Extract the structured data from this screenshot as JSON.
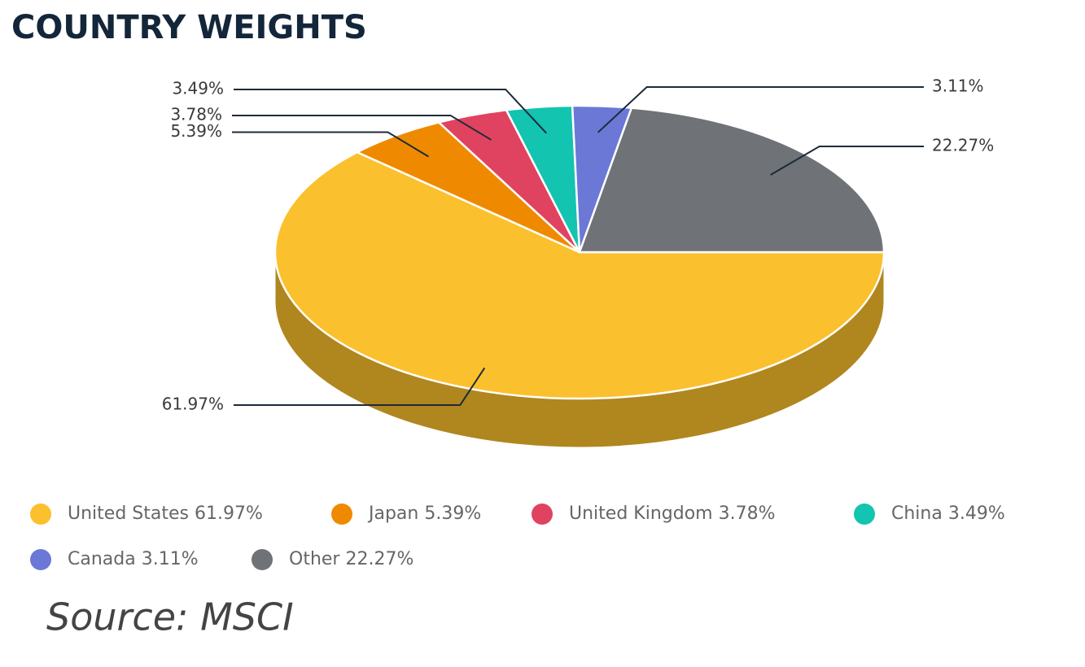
{
  "chart_data": {
    "type": "pie",
    "title": "COUNTRY WEIGHTS",
    "categories": [
      "United States",
      "Japan",
      "United Kingdom",
      "China",
      "Canada",
      "Other"
    ],
    "values": [
      61.97,
      5.39,
      3.78,
      3.49,
      3.11,
      22.27
    ],
    "value_labels": [
      "61.97%",
      "5.39%",
      "3.78%",
      "3.49%",
      "3.11%",
      "22.27%"
    ],
    "colors": [
      "#fbc02d",
      "#ef8a00",
      "#e0435f",
      "#13c4b0",
      "#6b78d6",
      "#6f7276"
    ],
    "source": "Source: MSCI"
  }
}
